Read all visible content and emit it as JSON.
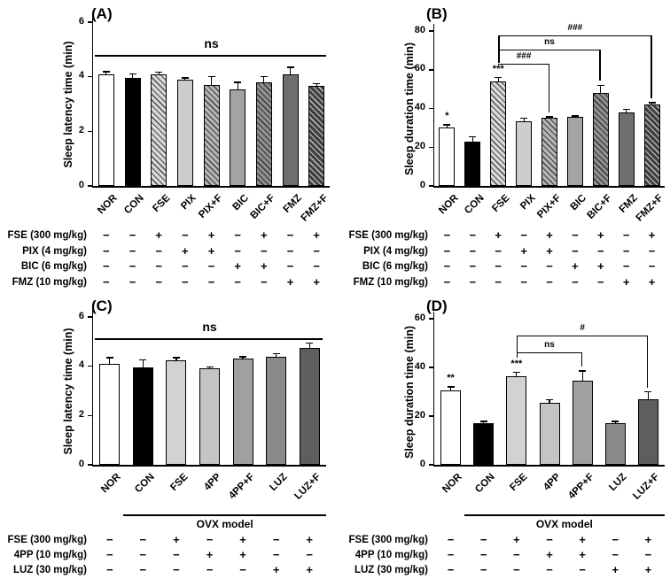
{
  "figure_background": "#ffffff",
  "axis_color": "#000000",
  "chart_data": [
    {
      "panel": "(A)",
      "type": "bar",
      "ylabel": "Sleep latency time (min)",
      "ylim": [
        0,
        6
      ],
      "yticks": [
        0,
        2,
        4,
        6
      ],
      "categories": [
        "NOR",
        "CON",
        "FSE",
        "PIX",
        "PIX+F",
        "BIC",
        "BIC+F",
        "FMZ",
        "FMZ+F"
      ],
      "values": [
        4.1,
        3.95,
        4.1,
        3.9,
        3.7,
        3.55,
        3.8,
        4.1,
        3.65
      ],
      "errors": [
        0.08,
        0.15,
        0.07,
        0.06,
        0.3,
        0.25,
        0.2,
        0.25,
        0.1
      ],
      "sig": [
        "",
        "",
        "",
        "",
        "",
        "",
        "",
        "",
        ""
      ],
      "bar_styles": [
        {
          "color": "#ffffff",
          "hatch": ""
        },
        {
          "color": "#000000",
          "hatch": ""
        },
        {
          "color": "#d8d8d8",
          "hatch": "dark"
        },
        {
          "color": "#cdcdcd",
          "hatch": ""
        },
        {
          "color": "#b5b5b5",
          "hatch": "dark"
        },
        {
          "color": "#a3a3a3",
          "hatch": ""
        },
        {
          "color": "#909090",
          "hatch": "dark"
        },
        {
          "color": "#6f6f6f",
          "hatch": ""
        },
        {
          "color": "#404040",
          "hatch": "light"
        }
      ],
      "annotations": {
        "overall": "ns"
      },
      "dose_table": {
        "rows": [
          {
            "label": "FSE (300 mg/kg)",
            "values": [
              "−",
              "−",
              "+",
              "−",
              "+",
              "−",
              "+",
              "−",
              "+"
            ]
          },
          {
            "label": "PIX (4 mg/kg)",
            "values": [
              "−",
              "−",
              "−",
              "+",
              "+",
              "−",
              "−",
              "−",
              "−"
            ]
          },
          {
            "label": "BIC (6 mg/kg)",
            "values": [
              "−",
              "−",
              "−",
              "−",
              "−",
              "+",
              "+",
              "−",
              "−"
            ]
          },
          {
            "label": "FMZ (10 mg/kg)",
            "values": [
              "−",
              "−",
              "−",
              "−",
              "−",
              "−",
              "−",
              "+",
              "+"
            ]
          }
        ]
      }
    },
    {
      "panel": "(B)",
      "type": "bar",
      "ylabel": "Sleep duration time (min)",
      "ylim": [
        0,
        80
      ],
      "yticks": [
        0,
        20,
        40,
        60,
        80
      ],
      "categories": [
        "NOR",
        "CON",
        "FSE",
        "PIX",
        "PIX+F",
        "BIC",
        "BIC+F",
        "FMZ",
        "FMZ+F"
      ],
      "values": [
        30,
        23,
        54,
        33.5,
        35,
        35.5,
        48,
        38,
        42
      ],
      "errors": [
        1.5,
        2.5,
        2,
        1.5,
        0.7,
        0.7,
        4,
        1.5,
        1
      ],
      "sig": [
        "*",
        "",
        "***",
        "",
        "",
        "",
        "",
        "",
        ""
      ],
      "bar_styles": [
        {
          "color": "#ffffff",
          "hatch": ""
        },
        {
          "color": "#000000",
          "hatch": ""
        },
        {
          "color": "#d8d8d8",
          "hatch": "dark"
        },
        {
          "color": "#cdcdcd",
          "hatch": ""
        },
        {
          "color": "#b5b5b5",
          "hatch": "dark"
        },
        {
          "color": "#a3a3a3",
          "hatch": ""
        },
        {
          "color": "#909090",
          "hatch": "dark"
        },
        {
          "color": "#6f6f6f",
          "hatch": ""
        },
        {
          "color": "#404040",
          "hatch": "light"
        }
      ],
      "annotations": {
        "brackets": [
          {
            "from": "FSE",
            "to": "PIX+F",
            "label": "###",
            "level": 1
          },
          {
            "from": "FSE",
            "to": "BIC+F",
            "label": "ns",
            "level": 2
          },
          {
            "from": "FSE",
            "to": "FMZ+F",
            "label": "###",
            "level": 3
          }
        ]
      },
      "dose_table": {
        "rows": [
          {
            "label": "FSE (300 mg/kg)",
            "values": [
              "−",
              "−",
              "+",
              "−",
              "+",
              "−",
              "+",
              "−",
              "+"
            ]
          },
          {
            "label": "PIX (4 mg/kg)",
            "values": [
              "−",
              "−",
              "−",
              "+",
              "+",
              "−",
              "−",
              "−",
              "−"
            ]
          },
          {
            "label": "BIC (6 mg/kg)",
            "values": [
              "−",
              "−",
              "−",
              "−",
              "−",
              "+",
              "+",
              "−",
              "−"
            ]
          },
          {
            "label": "FMZ (10 mg/kg)",
            "values": [
              "−",
              "−",
              "−",
              "−",
              "−",
              "−",
              "−",
              "+",
              "+"
            ]
          }
        ]
      }
    },
    {
      "panel": "(C)",
      "type": "bar",
      "ylabel": "Sleep latency time (min)",
      "ylim": [
        0,
        6
      ],
      "yticks": [
        0,
        2,
        4,
        6
      ],
      "categories": [
        "NOR",
        "CON",
        "FSE",
        "4PP",
        "4PP+F",
        "LUZ",
        "LUZ+F"
      ],
      "values": [
        4.1,
        3.95,
        4.25,
        3.9,
        4.3,
        4.4,
        4.75
      ],
      "errors": [
        0.25,
        0.3,
        0.1,
        0.07,
        0.08,
        0.1,
        0.2
      ],
      "sig": [
        "",
        "",
        "",
        "",
        "",
        "",
        ""
      ],
      "bar_styles": [
        {
          "color": "#ffffff",
          "hatch": ""
        },
        {
          "color": "#000000",
          "hatch": ""
        },
        {
          "color": "#d2d2d2",
          "hatch": ""
        },
        {
          "color": "#c4c4c4",
          "hatch": ""
        },
        {
          "color": "#a0a0a0",
          "hatch": ""
        },
        {
          "color": "#8a8a8a",
          "hatch": ""
        },
        {
          "color": "#5e5e5e",
          "hatch": ""
        }
      ],
      "annotations": {
        "overall": "ns"
      },
      "group_label": {
        "text": "OVX model"
      },
      "dose_table": {
        "rows": [
          {
            "label": "FSE (300 mg/kg)",
            "values": [
              "−",
              "−",
              "+",
              "−",
              "+",
              "−",
              "+"
            ]
          },
          {
            "label": "4PP (10 mg/kg)",
            "values": [
              "−",
              "−",
              "−",
              "+",
              "+",
              "−",
              "−"
            ]
          },
          {
            "label": "LUZ (30 mg/kg)",
            "values": [
              "−",
              "−",
              "−",
              "−",
              "−",
              "+",
              "+"
            ]
          }
        ]
      }
    },
    {
      "panel": "(D)",
      "type": "bar",
      "ylabel": "Sleep duration time (min)",
      "ylim": [
        0,
        60
      ],
      "yticks": [
        0,
        20,
        40,
        60
      ],
      "categories": [
        "NOR",
        "CON",
        "FSE",
        "4PP",
        "4PP+F",
        "LUZ",
        "LUZ+F"
      ],
      "values": [
        30.5,
        17,
        36.5,
        25.5,
        34.5,
        17,
        27
      ],
      "errors": [
        1.5,
        0.8,
        1.5,
        1.2,
        4,
        0.8,
        3
      ],
      "sig": [
        "**",
        "",
        "***",
        "",
        "",
        "",
        ""
      ],
      "bar_styles": [
        {
          "color": "#ffffff",
          "hatch": ""
        },
        {
          "color": "#000000",
          "hatch": ""
        },
        {
          "color": "#d2d2d2",
          "hatch": ""
        },
        {
          "color": "#c4c4c4",
          "hatch": ""
        },
        {
          "color": "#a0a0a0",
          "hatch": ""
        },
        {
          "color": "#8a8a8a",
          "hatch": ""
        },
        {
          "color": "#5e5e5e",
          "hatch": ""
        }
      ],
      "annotations": {
        "brackets": [
          {
            "from": "FSE",
            "to": "4PP+F",
            "label": "ns",
            "level": 1
          },
          {
            "from": "FSE",
            "to": "LUZ+F",
            "label": "#",
            "level": 2
          }
        ]
      },
      "group_label": {
        "text": "OVX model"
      },
      "dose_table": {
        "rows": [
          {
            "label": "FSE (300 mg/kg)",
            "values": [
              "−",
              "−",
              "+",
              "−",
              "+",
              "−",
              "+"
            ]
          },
          {
            "label": "4PP (10 mg/kg)",
            "values": [
              "−",
              "−",
              "−",
              "+",
              "+",
              "−",
              "−"
            ]
          },
          {
            "label": "LUZ (30 mg/kg)",
            "values": [
              "−",
              "−",
              "−",
              "−",
              "−",
              "+",
              "+"
            ]
          }
        ]
      }
    }
  ]
}
